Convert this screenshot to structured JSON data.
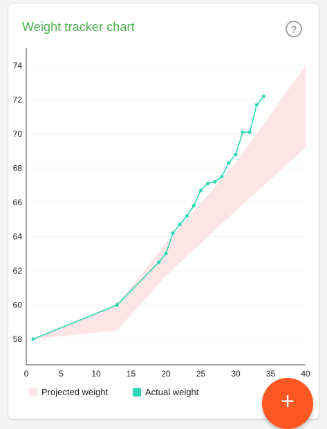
{
  "card": {
    "title": "Weight tracker chart",
    "help_icon": "help-circle-icon"
  },
  "fab": {
    "label": "+",
    "icon": "plus-icon",
    "color": "#ff5722"
  },
  "colors": {
    "title": "#4cae4f",
    "projected": "#fde4e6",
    "actual": "#2fd8b2"
  },
  "chart_data": {
    "type": "line",
    "title": "",
    "xlabel": "",
    "ylabel": "",
    "xlim": [
      0,
      40
    ],
    "ylim": [
      56.5,
      75
    ],
    "xticks": [
      0,
      5,
      10,
      15,
      20,
      25,
      30,
      35,
      40
    ],
    "yticks": [
      58,
      60,
      62,
      64,
      66,
      68,
      70,
      72,
      74
    ],
    "grid": true,
    "legend": "bottom",
    "series": [
      {
        "name": "Actual weight",
        "type": "line",
        "x": [
          1,
          13,
          19,
          20,
          21,
          22,
          23,
          24,
          25,
          26,
          27,
          28,
          29,
          30,
          31,
          32,
          33,
          34
        ],
        "y": [
          58,
          60,
          62.5,
          63,
          64.2,
          64.7,
          65.2,
          65.8,
          66.7,
          67.1,
          67.2,
          67.5,
          68.3,
          68.8,
          70.1,
          70.1,
          71.7,
          72.2
        ]
      },
      {
        "name": "Projected weight",
        "type": "area-band",
        "x": [
          1,
          13,
          20,
          30,
          40
        ],
        "upper": [
          58,
          60,
          63.6,
          68.3,
          74
        ],
        "lower": [
          58,
          58.5,
          61.7,
          65.5,
          69.2
        ]
      }
    ]
  }
}
